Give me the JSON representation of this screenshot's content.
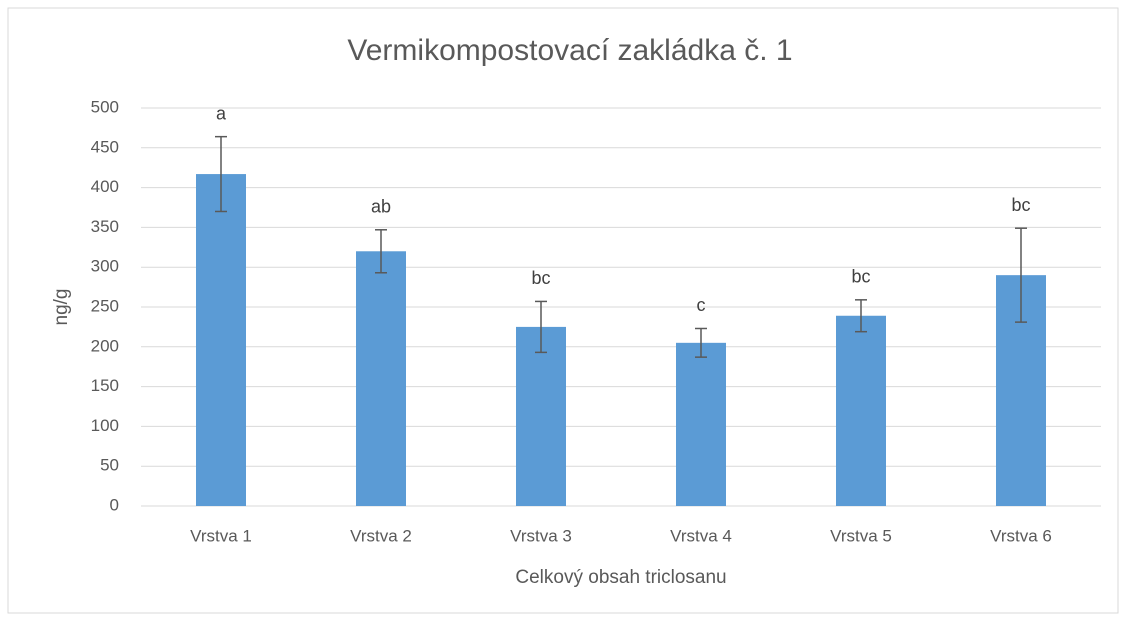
{
  "chart_data": {
    "type": "bar",
    "title": "Vermikompostovací zakládka č. 1",
    "x_label": "Celkový obsah triclosanu",
    "y_label": "ng/g",
    "categories": [
      "Vrstva 1",
      "Vrstva 2",
      "Vrstva 3",
      "Vrstva 4",
      "Vrstva 5",
      "Vrstva 6"
    ],
    "values": [
      417,
      320,
      225,
      205,
      239,
      290
    ],
    "errors": [
      47,
      27,
      32,
      18,
      20,
      59
    ],
    "value_labels": [
      "a",
      "ab",
      "bc",
      "c",
      "bc",
      "bc"
    ],
    "color": "#5b9bd5",
    "error_color": "#595959",
    "ylim": [
      0,
      500
    ],
    "yticks": [
      0,
      50,
      100,
      150,
      200,
      250,
      300,
      350,
      400,
      450,
      500
    ],
    "grid": true
  }
}
